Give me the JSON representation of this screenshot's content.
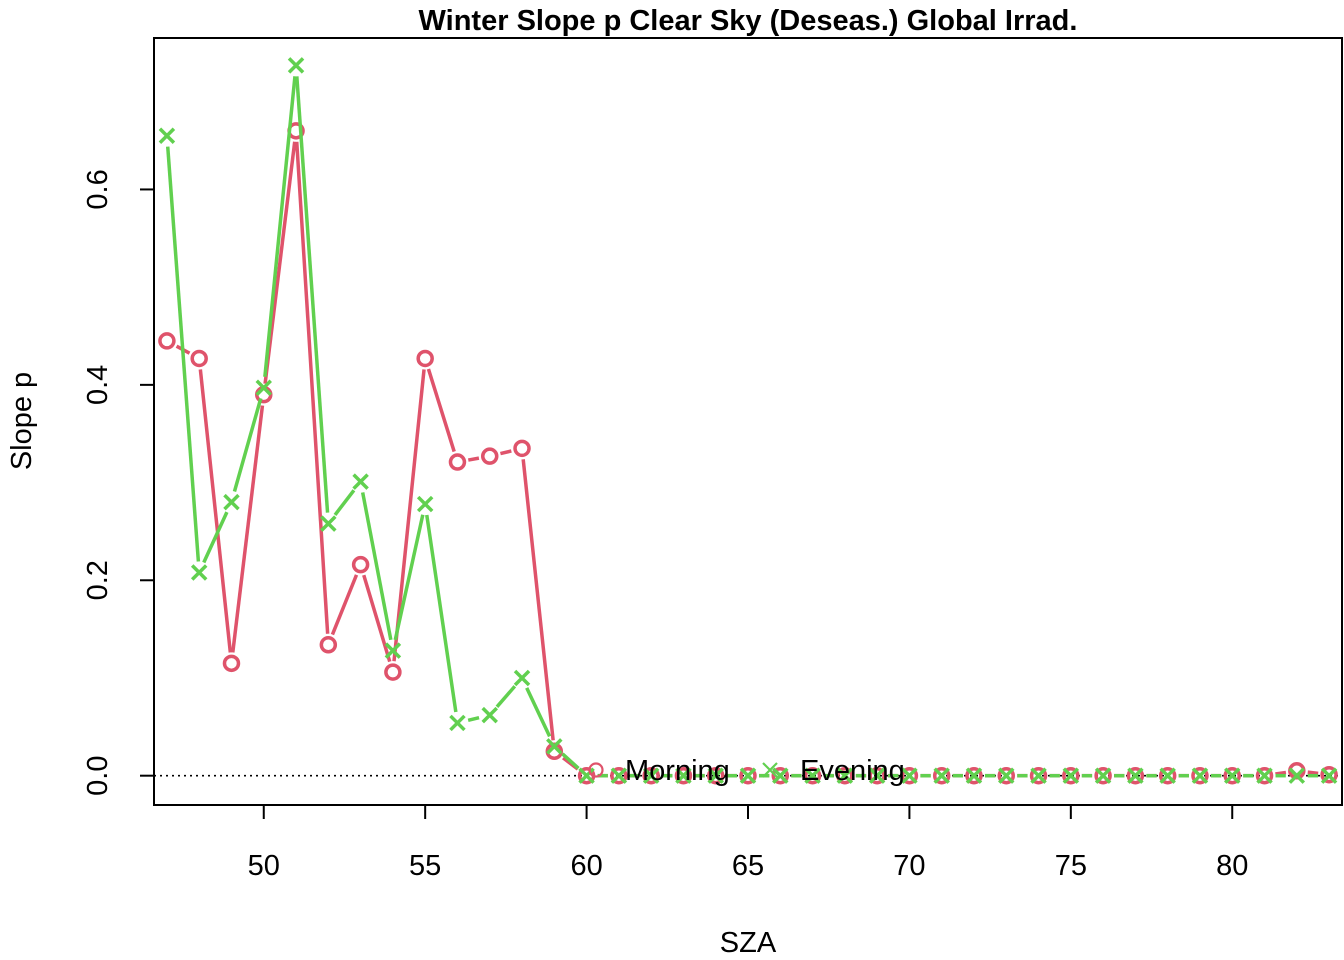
{
  "chart_data": {
    "type": "line",
    "title": "Winter Slope p Clear Sky (Deseas.) Global Irrad.",
    "xlabel": "SZA",
    "ylabel": "Slope p",
    "xlim": [
      46.6,
      83.4
    ],
    "ylim": [
      -0.03,
      0.755
    ],
    "x_ticks": [
      50,
      55,
      60,
      65,
      70,
      75,
      80
    ],
    "y_ticks": [
      0.0,
      0.2,
      0.4,
      0.6
    ],
    "x_tick_labels": [
      "50",
      "55",
      "60",
      "65",
      "70",
      "75",
      "80"
    ],
    "y_tick_labels": [
      "0.0",
      "0.2",
      "0.4",
      "0.6"
    ],
    "reference_line": {
      "y": 0,
      "style": "dotted",
      "color": "#000000"
    },
    "legend": {
      "placement": "bottom-center",
      "entries": [
        "Morning",
        "Evening"
      ]
    },
    "series": [
      {
        "name": "Morning",
        "color": "#DF536B",
        "marker": "circle",
        "x": [
          47,
          48,
          49,
          50,
          51,
          52,
          53,
          54,
          55,
          56,
          57,
          58,
          59,
          60,
          61,
          62,
          63,
          64,
          65,
          66,
          67,
          68,
          69,
          70,
          71,
          72,
          73,
          74,
          75,
          76,
          77,
          78,
          79,
          80,
          81,
          82,
          83
        ],
        "y": [
          0.445,
          0.427,
          0.115,
          0.39,
          0.66,
          0.134,
          0.216,
          0.106,
          0.427,
          0.321,
          0.327,
          0.335,
          0.025,
          0.0,
          0.0,
          0.0,
          0.0,
          0.0,
          0.0,
          0.0,
          0.0,
          0.0,
          0.0,
          0.0,
          0.0,
          0.0,
          0.0,
          0.0,
          0.0,
          0.0,
          0.0,
          0.0,
          0.0,
          0.0,
          0.0,
          0.005,
          0.001
        ]
      },
      {
        "name": "Evening",
        "color": "#61D04F",
        "marker": "x",
        "x": [
          47,
          48,
          49,
          50,
          51,
          52,
          53,
          54,
          55,
          56,
          57,
          58,
          59,
          60,
          61,
          62,
          63,
          64,
          65,
          66,
          67,
          68,
          69,
          70,
          71,
          72,
          73,
          74,
          75,
          76,
          77,
          78,
          79,
          80,
          81,
          82,
          83
        ],
        "y": [
          0.655,
          0.208,
          0.28,
          0.397,
          0.727,
          0.258,
          0.301,
          0.128,
          0.278,
          0.054,
          0.062,
          0.1,
          0.03,
          0.0,
          0.0,
          0.0,
          0.0,
          0.0,
          0.0,
          0.0,
          0.0,
          0.0,
          0.0,
          0.0,
          0.0,
          0.0,
          0.0,
          0.0,
          0.0,
          0.0,
          0.0,
          0.0,
          0.0,
          0.0,
          0.0,
          0.0,
          0.0
        ]
      }
    ]
  }
}
